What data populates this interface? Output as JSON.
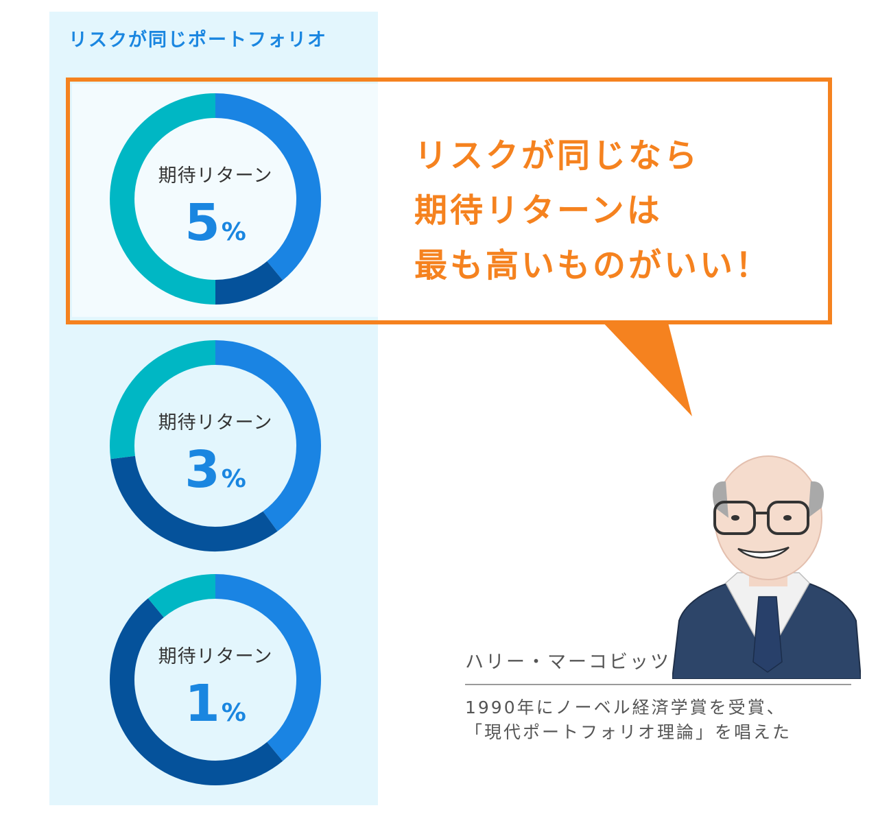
{
  "panel": {
    "title": "リスクが同じポートフォリオ"
  },
  "callout": {
    "lines": [
      "リスクが同じなら",
      "期待リターンは",
      "最も高いものがいい！"
    ]
  },
  "donuts": [
    {
      "label": "期待リターン",
      "value": "5",
      "unit": "%",
      "segments": [
        0.39,
        0.11,
        0.5
      ]
    },
    {
      "label": "期待リターン",
      "value": "3",
      "unit": "%",
      "segments": [
        0.4,
        0.33,
        0.27
      ]
    },
    {
      "label": "期待リターン",
      "value": "1",
      "unit": "%",
      "segments": [
        0.39,
        0.5,
        0.11
      ]
    }
  ],
  "segment_colors": [
    "#1a84e3",
    "#05529b",
    "#00b7c4"
  ],
  "person": {
    "name": "ハリー・マーコビッツ",
    "desc_lines": [
      "1990年にノーベル経済学賞を受賞、",
      "「現代ポートフォリオ理論」を唱えた"
    ]
  },
  "colors": {
    "accent": "#f5821f",
    "title_blue": "#1a86e0",
    "panel_bg": "#e3f6fd",
    "suit": "#2d4569"
  }
}
